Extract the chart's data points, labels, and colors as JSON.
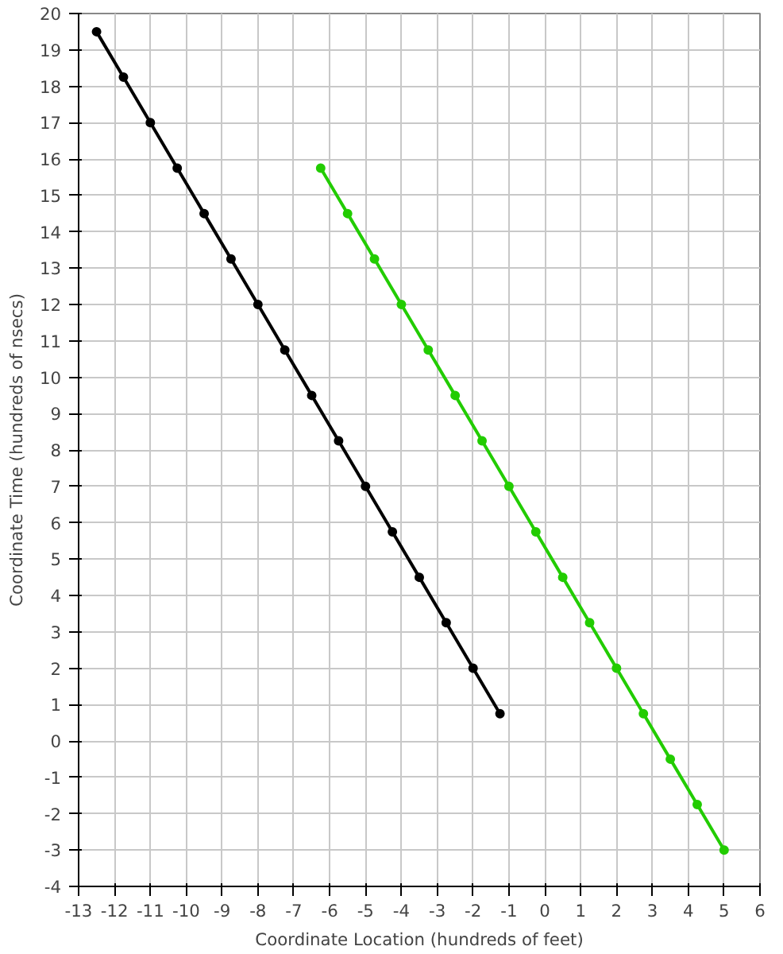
{
  "chart_data": {
    "type": "line",
    "xlabel": "Coordinate Location (hundreds of feet)",
    "ylabel": "Coordinate Time (hundreds of nsecs)",
    "xlim": [
      -13,
      6
    ],
    "ylim": [
      -4,
      20
    ],
    "xticks": [
      -13,
      -12,
      -11,
      -10,
      -9,
      -8,
      -7,
      -6,
      -5,
      -4,
      -3,
      -2,
      -1,
      0,
      1,
      2,
      3,
      4,
      5,
      6
    ],
    "yticks": [
      -4,
      -3,
      -2,
      -1,
      0,
      1,
      2,
      3,
      4,
      5,
      6,
      7,
      8,
      9,
      10,
      11,
      12,
      13,
      14,
      15,
      16,
      17,
      18,
      19,
      20
    ],
    "grid": true,
    "marker": "circle",
    "line_style": "solid",
    "series": [
      {
        "color": "#000000",
        "x": [
          -12.5,
          -11.75,
          -11,
          -10.25,
          -9.5,
          -8.75,
          -8,
          -7.25,
          -6.5,
          -5.75,
          -5,
          -4.25,
          -3.5,
          -2.75,
          -2,
          -1.25
        ],
        "values": [
          19.5,
          18.25,
          17,
          15.75,
          14.5,
          13.25,
          12,
          10.75,
          9.5,
          8.25,
          7,
          5.75,
          4.5,
          3.25,
          2,
          0.75
        ]
      },
      {
        "color": "#22cc00",
        "x": [
          -6.25,
          -5.5,
          -4.75,
          -4,
          -3.25,
          -2.5,
          -1.75,
          -1,
          -0.25,
          0.5,
          1.25,
          2,
          2.75,
          3.5,
          4.25,
          5
        ],
        "values": [
          15.75,
          14.5,
          13.25,
          12,
          10.75,
          9.5,
          8.25,
          7,
          5.75,
          4.5,
          3.25,
          2,
          0.75,
          -0.5,
          -1.75,
          -3
        ]
      }
    ]
  }
}
